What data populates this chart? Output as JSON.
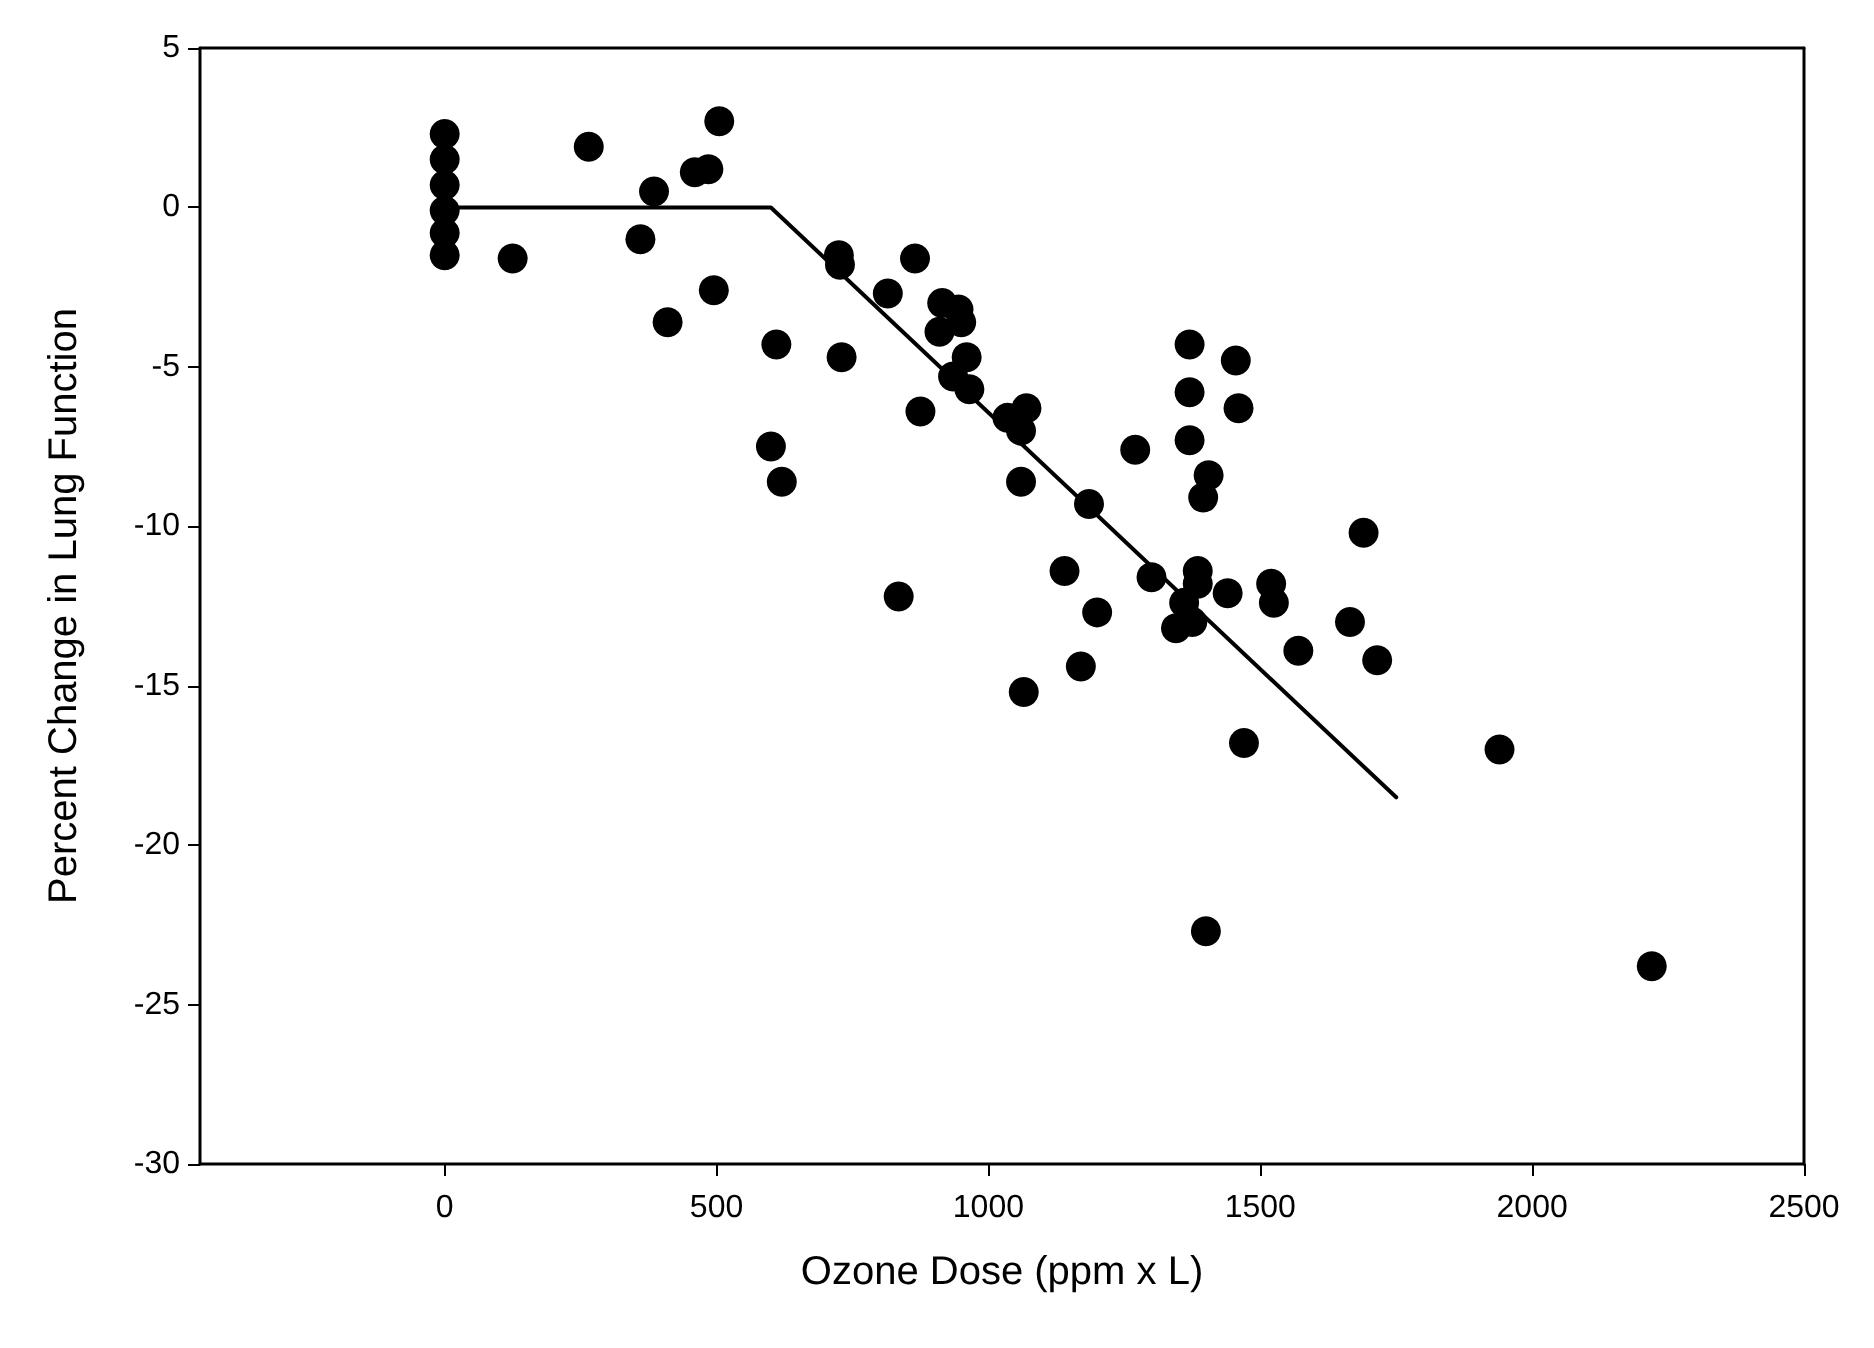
{
  "chart_data": {
    "type": "scatter",
    "xlabel": "Ozone Dose (ppm x L)",
    "ylabel": "Percent Change in Lung Function",
    "xlim": [
      -450,
      2500
    ],
    "xticks": [
      0,
      500,
      1000,
      1500,
      2000,
      2500
    ],
    "ylim": [
      -30,
      5
    ],
    "yticks": [
      -30,
      -25,
      -20,
      -15,
      -10,
      -5,
      0,
      5
    ],
    "grid": false,
    "marker": "circle",
    "series": [
      {
        "color": "#000000",
        "x": [
          0,
          0,
          0,
          0,
          0,
          0,
          125,
          265,
          360,
          385,
          410,
          460,
          485,
          495,
          505,
          600,
          610,
          620,
          725,
          727,
          730,
          815,
          835,
          865,
          875,
          910,
          915,
          945,
          950,
          935,
          960,
          965,
          1035,
          1060,
          1060,
          1070,
          1065,
          1140,
          1170,
          1185,
          1200,
          1270,
          1300,
          1345,
          1360,
          1370,
          1370,
          1370,
          1375,
          1385,
          1385,
          1395,
          1405,
          1400,
          1440,
          1455,
          1460,
          1470,
          1520,
          1525,
          1570,
          1665,
          1690,
          1715,
          1940,
          2220
        ],
        "values": [
          2.3,
          1.5,
          0.7,
          -0.1,
          -0.8,
          -1.5,
          -1.6,
          1.9,
          -1.0,
          0.5,
          -3.6,
          1.1,
          1.2,
          -2.6,
          2.7,
          -7.5,
          -4.3,
          -8.6,
          -1.5,
          -1.8,
          -4.7,
          -2.7,
          -12.2,
          -1.6,
          -6.4,
          -3.9,
          -3.0,
          -3.2,
          -3.6,
          -5.3,
          -4.7,
          -5.7,
          -6.6,
          -7.0,
          -8.6,
          -6.3,
          -15.2,
          -11.4,
          -14.4,
          -9.3,
          -12.7,
          -7.6,
          -11.6,
          -13.2,
          -12.4,
          -4.3,
          -5.8,
          -7.3,
          -13.0,
          -11.4,
          -11.8,
          -9.1,
          -8.4,
          -22.7,
          -12.1,
          -4.8,
          -6.3,
          -16.8,
          -11.8,
          -12.4,
          -13.9,
          -13.0,
          -10.2,
          -14.2,
          -17.0,
          -23.8
        ]
      },
      {
        "type": "line",
        "color": "#000000",
        "marker": "none",
        "x": [
          0,
          600,
          1750
        ],
        "values": [
          0,
          0,
          -18.5
        ]
      }
    ]
  }
}
